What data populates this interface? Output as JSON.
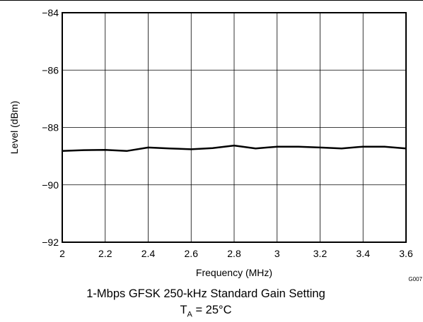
{
  "chart_data": {
    "type": "line",
    "xlabel": "Frequency (MHz)",
    "ylabel": "Level (dBm)",
    "xlim": [
      2,
      3.6
    ],
    "ylim": [
      -92,
      -84
    ],
    "x_ticks": [
      "2",
      "2.2",
      "2.4",
      "2.6",
      "2.8",
      "3",
      "3.2",
      "3.4",
      "3.6"
    ],
    "y_ticks": [
      "−84",
      "−86",
      "−88",
      "−90",
      "−92"
    ],
    "grid": true,
    "series": [
      {
        "color": "#000000",
        "x": [
          2.0,
          2.1,
          2.2,
          2.3,
          2.4,
          2.5,
          2.6,
          2.7,
          2.8,
          2.9,
          3.0,
          3.1,
          3.2,
          3.3,
          3.4,
          3.5,
          3.6
        ],
        "y": [
          -88.82,
          -88.79,
          -88.78,
          -88.82,
          -88.7,
          -88.73,
          -88.76,
          -88.72,
          -88.63,
          -88.73,
          -88.67,
          -88.67,
          -88.7,
          -88.73,
          -88.67,
          -88.67,
          -88.73
        ]
      }
    ]
  },
  "figure_id": "G007",
  "caption_line1": "1-Mbps GFSK 250-kHz Standard Gain Setting",
  "caption_line2": {
    "symbol": "T",
    "subscript": "A",
    "value": " = 25°C"
  }
}
